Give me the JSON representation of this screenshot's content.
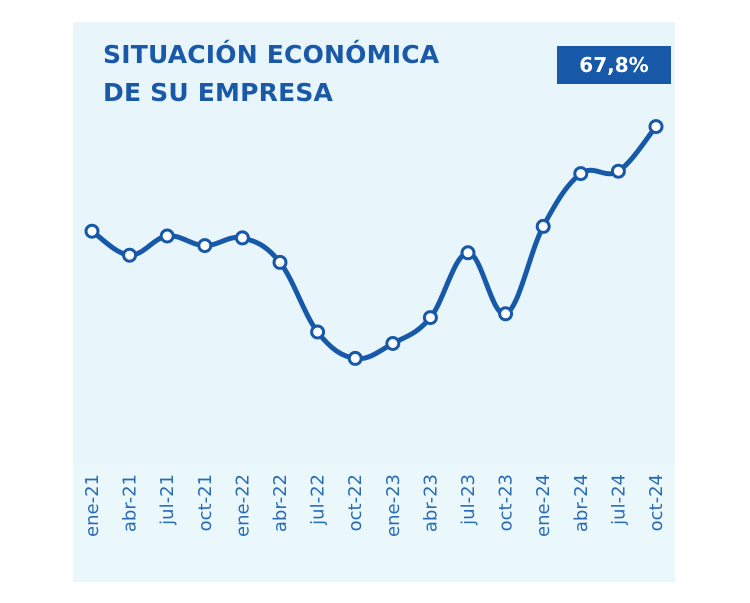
{
  "chart_data": {
    "type": "line",
    "title_lines": [
      "SITUACIÓN ECONÓMICA",
      "DE SU EMPRESA"
    ],
    "latest_value_label": "67,8%",
    "categories": [
      "ene-21",
      "abr-21",
      "jul-21",
      "oct-21",
      "ene-22",
      "abr-22",
      "jul-22",
      "oct-22",
      "ene-23",
      "abr-23",
      "jul-23",
      "oct-23",
      "ene-24",
      "abr-24",
      "jul-24",
      "oct-24"
    ],
    "values": [
      46.0,
      41.0,
      45.0,
      43.0,
      44.6,
      39.5,
      25.0,
      19.5,
      22.6,
      28.0,
      41.5,
      28.8,
      47.0,
      58.0,
      58.5,
      67.8
    ],
    "ylim": [
      0,
      75
    ],
    "grid": false,
    "legend": "none",
    "colors": {
      "line": "#1759a8",
      "marker_fill": "#ffffff",
      "plot_background": "#e8f6fb",
      "badge_background": "#1759a8",
      "title": "#1a59a8",
      "tick_labels": "#2a6bb5"
    }
  }
}
